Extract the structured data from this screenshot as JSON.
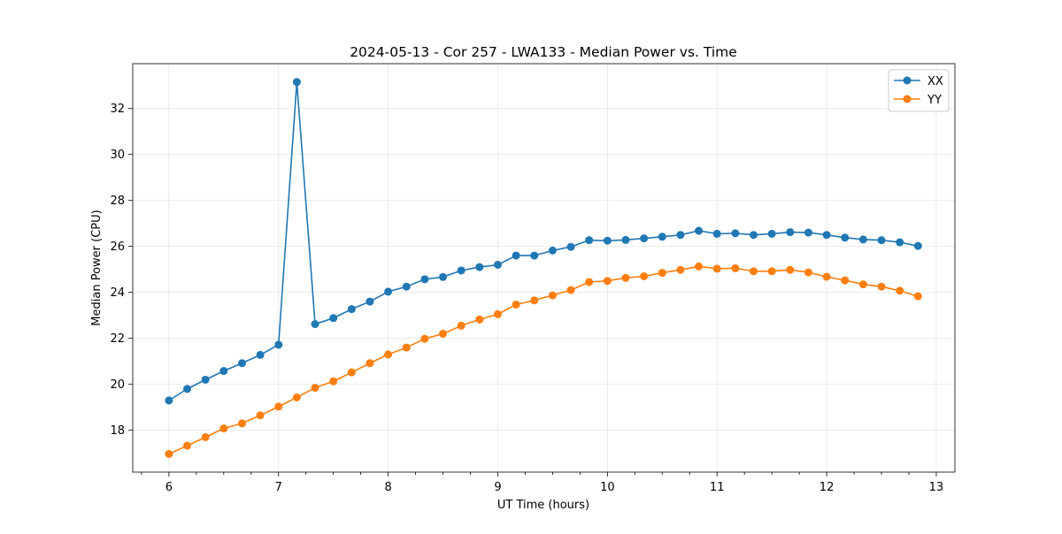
{
  "chart_data": {
    "type": "line",
    "title": "2024-05-13 - Cor 257 - LWA133 - Median Power vs. Time",
    "xlabel": "UT Time (hours)",
    "ylabel": "Median Power (CPU)",
    "xlim": [
      5.67,
      13.17
    ],
    "ylim": [
      16.18,
      33.95
    ],
    "grid": true,
    "legend_position": "top-right",
    "x_ticks": [
      6,
      7,
      8,
      9,
      10,
      11,
      12,
      13
    ],
    "x_minor_ticks": [
      5.75,
      6.25,
      6.5,
      6.75,
      7.25,
      7.5,
      7.75,
      8.25,
      8.5,
      8.75,
      9.25,
      9.5,
      9.75,
      10.25,
      10.5,
      10.75,
      11.25,
      11.5,
      11.75,
      12.25,
      12.5,
      12.75
    ],
    "y_ticks": [
      18,
      20,
      22,
      24,
      26,
      28,
      30,
      32
    ],
    "x": [
      6.0,
      6.1667,
      6.3333,
      6.5,
      6.6667,
      6.8333,
      7.0,
      7.1667,
      7.3333,
      7.5,
      7.6667,
      7.8333,
      8.0,
      8.1667,
      8.3333,
      8.5,
      8.6667,
      8.8333,
      9.0,
      9.1667,
      9.3333,
      9.5,
      9.6667,
      9.8333,
      10.0,
      10.1667,
      10.3333,
      10.5,
      10.6667,
      10.8333,
      11.0,
      11.1667,
      11.3333,
      11.5,
      11.6667,
      11.8333,
      12.0,
      12.1667,
      12.3333,
      12.5,
      12.6667,
      12.8333
    ],
    "series": [
      {
        "name": "XX",
        "color": "#1f77b4",
        "values": [
          19.3,
          19.8,
          20.2,
          20.58,
          20.92,
          21.28,
          21.72,
          33.15,
          22.62,
          22.88,
          23.27,
          23.6,
          24.03,
          24.25,
          24.57,
          24.67,
          24.95,
          25.1,
          25.2,
          25.6,
          25.6,
          25.82,
          25.98,
          26.27,
          26.25,
          26.28,
          26.35,
          26.42,
          26.5,
          26.68,
          26.55,
          26.57,
          26.5,
          26.55,
          26.62,
          26.6,
          26.5,
          26.38,
          26.3,
          26.27,
          26.18,
          26.02
        ]
      },
      {
        "name": "YY",
        "color": "#ff7f0e",
        "values": [
          16.97,
          17.33,
          17.7,
          18.08,
          18.3,
          18.65,
          19.03,
          19.43,
          19.85,
          20.13,
          20.52,
          20.92,
          21.3,
          21.6,
          21.98,
          22.2,
          22.55,
          22.82,
          23.05,
          23.47,
          23.65,
          23.87,
          24.1,
          24.45,
          24.5,
          24.63,
          24.7,
          24.85,
          24.98,
          25.13,
          25.03,
          25.05,
          24.92,
          24.92,
          24.98,
          24.87,
          24.68,
          24.52,
          24.35,
          24.25,
          24.07,
          23.83
        ]
      }
    ]
  }
}
